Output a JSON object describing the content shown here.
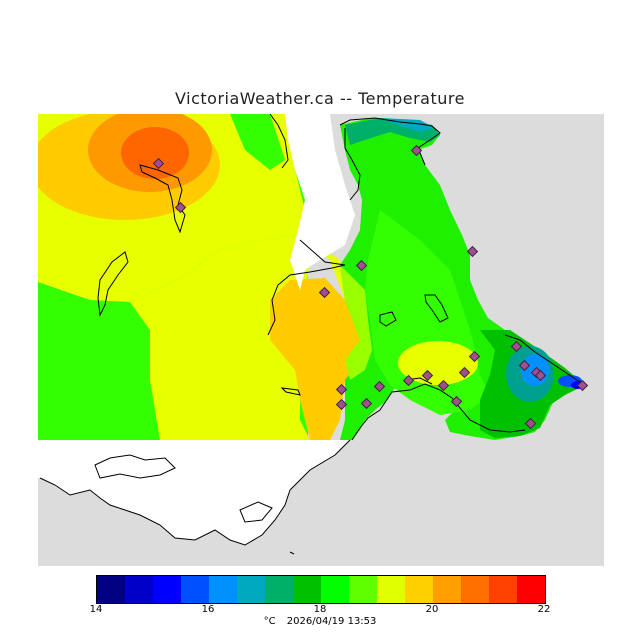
{
  "title": "VictoriaWeather.ca -- Temperature",
  "legend": {
    "ticks": [
      "14",
      "16",
      "18",
      "20",
      "22"
    ],
    "unit": "°C",
    "timestamp": "2026/04/19 13:53",
    "colors": [
      "#000080",
      "#0000c8",
      "#0000ff",
      "#0050ff",
      "#0090ff",
      "#00a8c0",
      "#00b068",
      "#00c000",
      "#00ff00",
      "#60ff00",
      "#e0ff00",
      "#ffd000",
      "#ffa000",
      "#ff7000",
      "#ff4000",
      "#ff0000"
    ]
  },
  "map": {
    "land_color": "#dcdcdc",
    "water_color": "#ffffff",
    "station_count": 22
  }
}
